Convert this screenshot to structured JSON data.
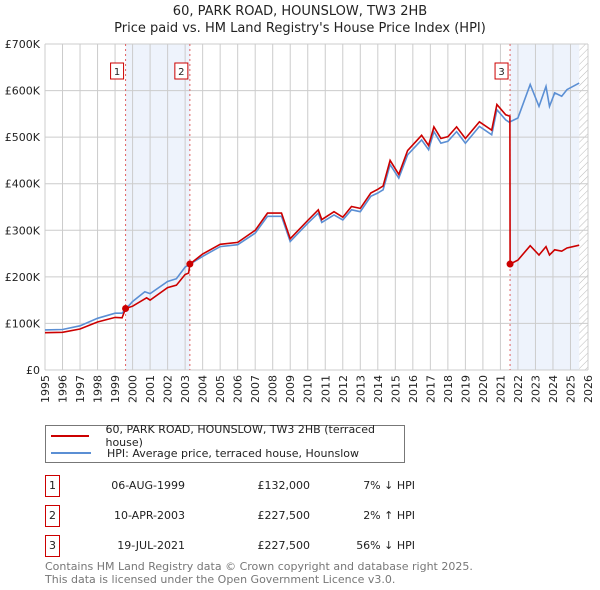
{
  "chart_data": {
    "type": "line",
    "title": "60, PARK ROAD, HOUNSLOW, TW3 2HB",
    "subtitle": "Price paid vs. HM Land Registry's House Price Index (HPI)",
    "xlim": [
      1995,
      2026
    ],
    "ylim": [
      0,
      700000
    ],
    "x_ticks": [
      "1995",
      "1996",
      "1997",
      "1998",
      "1999",
      "2000",
      "2001",
      "2002",
      "2003",
      "2004",
      "2005",
      "2006",
      "2007",
      "2008",
      "2009",
      "2010",
      "2011",
      "2012",
      "2013",
      "2014",
      "2015",
      "2016",
      "2017",
      "2018",
      "2019",
      "2020",
      "2021",
      "2022",
      "2023",
      "2024",
      "2025",
      "2026"
    ],
    "y_ticks": [
      {
        "v": 0,
        "label": "£0"
      },
      {
        "v": 100000,
        "label": "£100K"
      },
      {
        "v": 200000,
        "label": "£200K"
      },
      {
        "v": 300000,
        "label": "£300K"
      },
      {
        "v": 400000,
        "label": "£400K"
      },
      {
        "v": 500000,
        "label": "£500K"
      },
      {
        "v": 600000,
        "label": "£600K"
      },
      {
        "v": 700000,
        "label": "£700K"
      }
    ],
    "grid": true,
    "shaded_ranges": [
      [
        1999.6,
        2003.27
      ],
      [
        2021.55,
        2025.5
      ]
    ],
    "hatched_from": 2025.5,
    "series": [
      {
        "name": "60, PARK ROAD, HOUNSLOW, TW3 2HB (terraced house)",
        "color": "#cc0000",
        "points": [
          [
            1995,
            80
          ],
          [
            1996,
            81
          ],
          [
            1997,
            88
          ],
          [
            1998,
            103
          ],
          [
            1999,
            113
          ],
          [
            1999.4,
            112
          ],
          [
            1999.6,
            132
          ],
          [
            2000,
            137
          ],
          [
            2000.8,
            155
          ],
          [
            2001,
            150
          ],
          [
            2002,
            177
          ],
          [
            2002.5,
            182
          ],
          [
            2003,
            205
          ],
          [
            2003.2,
            208
          ],
          [
            2003.27,
            227.5
          ],
          [
            2004,
            249
          ],
          [
            2005,
            270
          ],
          [
            2006,
            274
          ],
          [
            2007,
            300
          ],
          [
            2007.7,
            337
          ],
          [
            2008.5,
            337
          ],
          [
            2009,
            282
          ],
          [
            2010,
            321
          ],
          [
            2010.6,
            344
          ],
          [
            2010.8,
            323
          ],
          [
            2011.5,
            340
          ],
          [
            2012,
            328
          ],
          [
            2012.5,
            351
          ],
          [
            2013,
            347
          ],
          [
            2013.6,
            380
          ],
          [
            2014,
            388
          ],
          [
            2014.3,
            395
          ],
          [
            2014.7,
            450
          ],
          [
            2015.2,
            420
          ],
          [
            2015.7,
            471
          ],
          [
            2016.5,
            504
          ],
          [
            2016.9,
            482
          ],
          [
            2017.2,
            522
          ],
          [
            2017.6,
            497
          ],
          [
            2018,
            501
          ],
          [
            2018.5,
            522
          ],
          [
            2019,
            497
          ],
          [
            2019.8,
            533
          ],
          [
            2020.5,
            515
          ],
          [
            2020.8,
            570
          ],
          [
            2021.3,
            548
          ],
          [
            2021.54,
            545
          ],
          [
            2021.55,
            227.5
          ],
          [
            2022,
            236
          ],
          [
            2022.7,
            267
          ],
          [
            2023.2,
            247
          ],
          [
            2023.6,
            265
          ],
          [
            2023.8,
            247
          ],
          [
            2024.1,
            258
          ],
          [
            2024.5,
            255
          ],
          [
            2024.8,
            262
          ],
          [
            2025.5,
            268
          ]
        ]
      },
      {
        "name": "HPI: Average price, terraced house, Hounslow",
        "color": "#5b8fd4",
        "points": [
          [
            1995,
            86
          ],
          [
            1996,
            87
          ],
          [
            1997,
            95
          ],
          [
            1998,
            111
          ],
          [
            1999,
            122
          ],
          [
            1999.4,
            122
          ],
          [
            2000,
            147
          ],
          [
            2000.7,
            168
          ],
          [
            2001,
            164
          ],
          [
            2002,
            190
          ],
          [
            2002.5,
            196
          ],
          [
            2003,
            221
          ],
          [
            2004,
            244
          ],
          [
            2005,
            265
          ],
          [
            2006,
            269
          ],
          [
            2007,
            294
          ],
          [
            2007.7,
            330
          ],
          [
            2008.5,
            330
          ],
          [
            2009,
            276
          ],
          [
            2010,
            315
          ],
          [
            2010.6,
            337
          ],
          [
            2010.8,
            317
          ],
          [
            2011.5,
            333
          ],
          [
            2012,
            322
          ],
          [
            2012.5,
            344
          ],
          [
            2013,
            340
          ],
          [
            2013.6,
            373
          ],
          [
            2014,
            380
          ],
          [
            2014.3,
            387
          ],
          [
            2014.7,
            441
          ],
          [
            2015.2,
            412
          ],
          [
            2015.7,
            462
          ],
          [
            2016.5,
            494
          ],
          [
            2016.9,
            473
          ],
          [
            2017.2,
            512
          ],
          [
            2017.6,
            487
          ],
          [
            2018,
            491
          ],
          [
            2018.5,
            512
          ],
          [
            2019,
            487
          ],
          [
            2019.8,
            523
          ],
          [
            2020.5,
            505
          ],
          [
            2020.8,
            559
          ],
          [
            2021.3,
            537
          ],
          [
            2021.5,
            532
          ],
          [
            2022,
            541
          ],
          [
            2022.7,
            613
          ],
          [
            2023.2,
            566
          ],
          [
            2023.6,
            609
          ],
          [
            2023.8,
            566
          ],
          [
            2024.1,
            595
          ],
          [
            2024.5,
            588
          ],
          [
            2024.8,
            602
          ],
          [
            2025.5,
            616
          ]
        ]
      }
    ],
    "sales": [
      {
        "id": "1",
        "x": 1999.6,
        "value": 132000
      },
      {
        "id": "2",
        "x": 2003.27,
        "value": 227500
      },
      {
        "id": "3",
        "x": 2021.55,
        "value": 227500
      }
    ]
  },
  "legend": {
    "property": "60, PARK ROAD, HOUNSLOW, TW3 2HB (terraced house)",
    "hpi": "HPI: Average price, terraced house, Hounslow"
  },
  "transactions": [
    {
      "num": "1",
      "date": "06-AUG-1999",
      "price": "£132,000",
      "hpi": "7% ↓ HPI"
    },
    {
      "num": "2",
      "date": "10-APR-2003",
      "price": "£227,500",
      "hpi": "2% ↑ HPI"
    },
    {
      "num": "3",
      "date": "19-JUL-2021",
      "price": "£227,500",
      "hpi": "56% ↓ HPI"
    }
  ],
  "footer": {
    "line1": "Contains HM Land Registry data © Crown copyright and database right 2025.",
    "line2": "This data is licensed under the Open Government Licence v3.0."
  }
}
